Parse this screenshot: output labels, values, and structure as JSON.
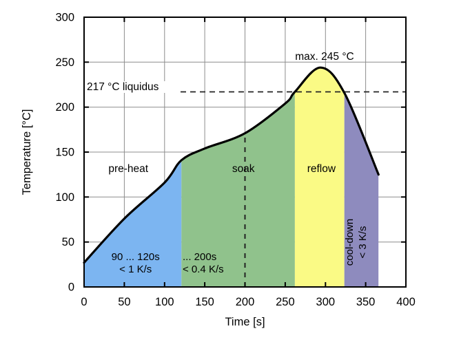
{
  "figure": {
    "background": "#ffffff",
    "axis_color": "#000000",
    "grid_color": "#8c8c8c",
    "dash_color": "#222222"
  },
  "chart_data": {
    "type": "area",
    "title": "",
    "xlabel": "Time [s]",
    "ylabel": "Temperature [°C]",
    "xlim": [
      0,
      400
    ],
    "ylim": [
      0,
      300
    ],
    "xticks": [
      0,
      50,
      100,
      150,
      200,
      250,
      300,
      350,
      400
    ],
    "yticks": [
      0,
      50,
      100,
      150,
      200,
      250,
      300
    ],
    "grid": true,
    "legend": "none",
    "series": [
      {
        "name": "temperature-profile",
        "color": "#000000",
        "points": [
          [
            0,
            27
          ],
          [
            50,
            76
          ],
          [
            100,
            116
          ],
          [
            121,
            141
          ],
          [
            150,
            154
          ],
          [
            200,
            171
          ],
          [
            250,
            204
          ],
          [
            262,
            217
          ],
          [
            294,
            244
          ],
          [
            324,
            215
          ],
          [
            366,
            125
          ]
        ]
      }
    ],
    "zones": [
      {
        "id": "pre-heat",
        "label": "pre-heat",
        "t_start": 0,
        "t_end": 121,
        "fill": "#7CB5F1",
        "note_lines": [
          "90 ... 120s",
          "< 1 K/s"
        ]
      },
      {
        "id": "soak",
        "label": "soak",
        "t_start": 121,
        "t_end": 262,
        "fill": "#90C28C",
        "note_lines": [
          "... 200s",
          "< 0.4 K/s"
        ]
      },
      {
        "id": "reflow",
        "label": "reflow",
        "t_start": 262,
        "t_end": 323.5,
        "fill": "#FAFA85",
        "note_lines": []
      },
      {
        "id": "cool-down",
        "label": "",
        "t_start": 323.5,
        "t_end": 366,
        "fill": "#8E8BBE",
        "note_lines": [],
        "rotated_note_lines": [
          "cool-down",
          "< 3 K/s"
        ]
      }
    ],
    "annotations": [
      {
        "id": "max-temp",
        "text": "max. 245 °C",
        "style": "text"
      },
      {
        "id": "liquidus",
        "text": "217 °C liquidus",
        "temp": 217,
        "style": "dashed-horizontal"
      },
      {
        "id": "soak-time-marker",
        "text": "",
        "time": 200,
        "style": "dashed-vertical"
      }
    ]
  }
}
